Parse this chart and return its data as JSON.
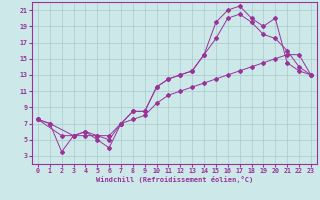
{
  "background_color": "#cce8e8",
  "grid_color": "#aacccc",
  "line_color": "#993399",
  "xlim": [
    -0.5,
    23.5
  ],
  "ylim": [
    2,
    22
  ],
  "xticks": [
    0,
    1,
    2,
    3,
    4,
    5,
    6,
    7,
    8,
    9,
    10,
    11,
    12,
    13,
    14,
    15,
    16,
    17,
    18,
    19,
    20,
    21,
    22,
    23
  ],
  "yticks": [
    3,
    5,
    7,
    9,
    11,
    13,
    15,
    17,
    19,
    21
  ],
  "xlabel": "Windchill (Refroidissement éolien,°C)",
  "line1_x": [
    0,
    1,
    2,
    3,
    4,
    5,
    6,
    7,
    8,
    9,
    10,
    11,
    12,
    13,
    14,
    15,
    16,
    17,
    18,
    19,
    20,
    21,
    22,
    23
  ],
  "line1_y": [
    7.5,
    7.0,
    3.5,
    5.5,
    5.5,
    5.5,
    5.0,
    7.0,
    8.5,
    8.5,
    11.5,
    12.5,
    13.0,
    13.5,
    15.5,
    19.5,
    21.0,
    21.5,
    20.0,
    19.0,
    20.0,
    14.5,
    13.5,
    13.0
  ],
  "line2_x": [
    0,
    2,
    3,
    4,
    5,
    6,
    7,
    8,
    9,
    10,
    11,
    12,
    13,
    14,
    15,
    16,
    17,
    18,
    19,
    20,
    21,
    22,
    23
  ],
  "line2_y": [
    7.5,
    5.5,
    5.5,
    6.0,
    5.5,
    5.5,
    7.0,
    8.5,
    8.5,
    11.5,
    12.5,
    13.0,
    13.5,
    15.5,
    17.5,
    20.0,
    20.5,
    19.5,
    18.0,
    17.5,
    16.0,
    14.0,
    13.0
  ],
  "line3_x": [
    0,
    1,
    3,
    4,
    5,
    6,
    7,
    8,
    9,
    10,
    11,
    12,
    13,
    14,
    15,
    16,
    17,
    18,
    19,
    20,
    21,
    22,
    23
  ],
  "line3_y": [
    7.5,
    7.0,
    5.5,
    6.0,
    5.0,
    4.0,
    7.0,
    7.5,
    8.0,
    9.5,
    10.5,
    11.0,
    11.5,
    12.0,
    12.5,
    13.0,
    13.5,
    14.0,
    14.5,
    15.0,
    15.5,
    15.5,
    13.0
  ]
}
